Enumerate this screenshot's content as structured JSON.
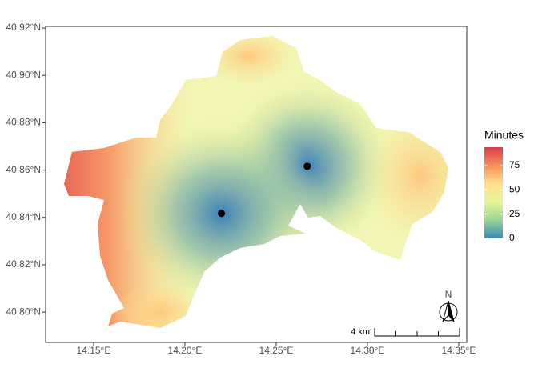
{
  "map": {
    "xlim": [
      14.1237,
      14.3544
    ],
    "ylim": [
      40.7872,
      40.9207
    ],
    "xticks": [
      {
        "value": 14.15,
        "label": "14.15°E"
      },
      {
        "value": 14.2,
        "label": "14.20°E"
      },
      {
        "value": 14.25,
        "label": "14.25°E"
      },
      {
        "value": 14.3,
        "label": "14.30°E"
      },
      {
        "value": 14.35,
        "label": "14.35°E"
      }
    ],
    "yticks": [
      {
        "value": 40.8,
        "label": "40.80°N"
      },
      {
        "value": 40.82,
        "label": "40.82°N"
      },
      {
        "value": 40.84,
        "label": "40.84°N"
      },
      {
        "value": 40.86,
        "label": "40.86°N"
      },
      {
        "value": 40.88,
        "label": "40.88°N"
      },
      {
        "value": 40.9,
        "label": "40.90°N"
      },
      {
        "value": 40.92,
        "label": "40.92°N"
      }
    ],
    "points": [
      {
        "lon": 14.267,
        "lat": 40.8616
      },
      {
        "lon": 14.22,
        "lat": 40.8417
      }
    ],
    "legend": {
      "title": "Minutes",
      "limits": [
        0,
        94
      ],
      "ticks": [
        0,
        25,
        50,
        75
      ],
      "colors": [
        "#3288bd",
        "#99d594",
        "#e6f598",
        "#fee08b",
        "#fc8d59",
        "#d53e4f"
      ]
    },
    "scale_bar": "4 km",
    "north": "N"
  }
}
